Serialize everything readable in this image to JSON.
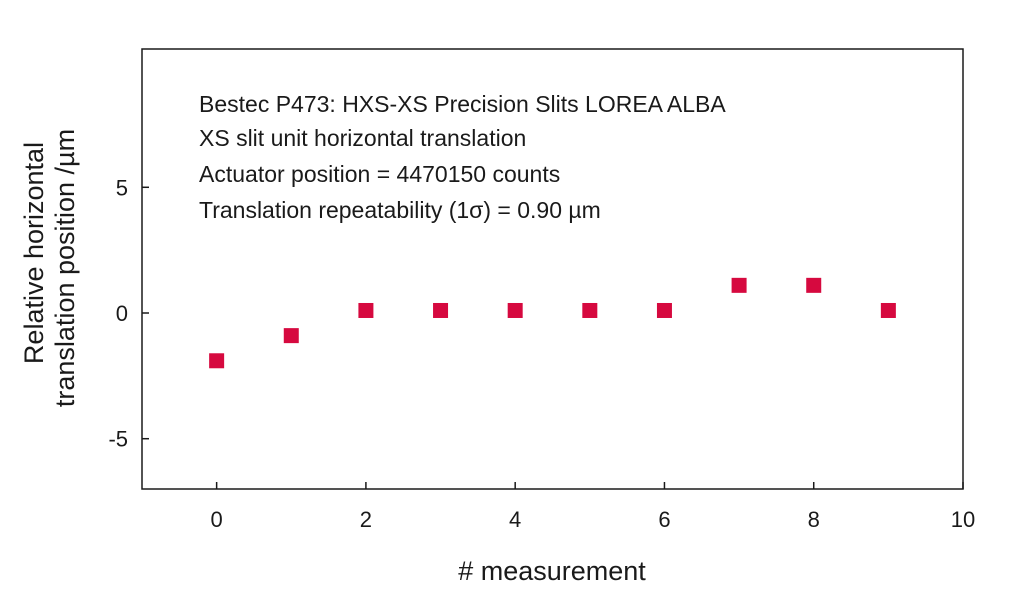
{
  "chart_data": {
    "type": "scatter",
    "title": "",
    "xlabel": "# measurement",
    "ylabel_lines": [
      "Relative horizontal",
      "translation position /µm"
    ],
    "xlim": [
      -1,
      10
    ],
    "ylim": [
      -7,
      10.5
    ],
    "xticks": [
      0,
      2,
      4,
      6,
      8,
      10
    ],
    "yticks": [
      -5,
      0,
      5
    ],
    "xtick_labels": [
      "0",
      "2",
      "4",
      "6",
      "8",
      "10"
    ],
    "ytick_labels": [
      "-5",
      "0",
      "5"
    ],
    "grid": false,
    "marker": "square",
    "color": "#d6093f",
    "annotations": [
      "Bestec P473: HXS-XS Precision Slits LOREA ALBA",
      "XS slit unit horizontal translation",
      "Actuator position = 4470150 counts",
      "Translation repeatability (1σ) = 0.90 µm"
    ],
    "series": [
      {
        "x": [
          0,
          1,
          2,
          3,
          4,
          5,
          6,
          7,
          8,
          9
        ],
        "y": [
          -1.9,
          -0.9,
          0.1,
          0.1,
          0.1,
          0.1,
          0.1,
          1.1,
          1.1,
          0.1
        ]
      }
    ]
  }
}
